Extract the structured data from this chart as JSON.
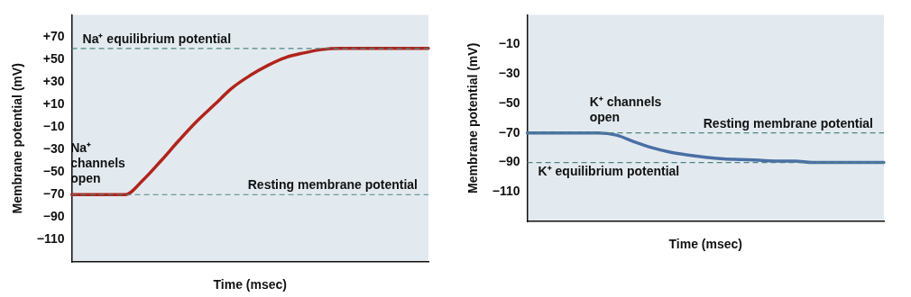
{
  "chart_data": [
    {
      "type": "line",
      "xlabel": "Time (msec)",
      "ylabel": "Membrane potential (mV)",
      "categories": [
        null,
        null,
        null,
        null,
        null,
        null,
        null,
        null,
        null,
        null,
        null,
        null,
        null,
        null,
        null,
        null,
        null,
        null,
        null,
        null,
        null
      ],
      "series": [
        {
          "color": "#b0241c",
          "values": [
            -70,
            -70,
            -70,
            -70,
            -57,
            -40,
            -22,
            -5,
            10,
            25,
            36,
            45,
            52,
            56,
            59,
            60,
            60,
            60,
            60,
            60,
            60
          ]
        }
      ],
      "ylim": [
        -130,
        90
      ],
      "yticks": [
        {
          "value": 70,
          "label": "+70"
        },
        {
          "value": 50,
          "label": "+50"
        },
        {
          "value": 30,
          "label": "+30"
        },
        {
          "value": 10,
          "label": "+10"
        },
        {
          "value": -10,
          "label": "−10"
        },
        {
          "value": -30,
          "label": "−30"
        },
        {
          "value": -50,
          "label": "−50"
        },
        {
          "value": -70,
          "label": "−70"
        },
        {
          "value": -90,
          "label": "−90"
        },
        {
          "value": -110,
          "label": "−110"
        }
      ],
      "tick_labels": "y",
      "grid": false,
      "marker": "none",
      "line_style": "solid",
      "ref_lines": [
        {
          "axis": "y",
          "value": 60,
          "label": "Na⁺ equilibrium potential",
          "color": "#4d8585",
          "line_style": "dashed"
        },
        {
          "axis": "y",
          "value": -70,
          "label": "Resting membrane potential",
          "color": "#4d8585",
          "line_style": "dashed"
        }
      ],
      "annotations": [
        {
          "text": "Na⁺\nchannels\nopen",
          "y": -70
        }
      ]
    },
    {
      "type": "line",
      "xlabel": "Time (msec)",
      "ylabel": "Membrane potential (mV)",
      "categories": [
        null,
        null,
        null,
        null,
        null,
        null,
        null,
        null,
        null,
        null,
        null,
        null,
        null,
        null,
        null,
        null,
        null,
        null,
        null,
        null,
        null
      ],
      "series": [
        {
          "color": "#4a6fa5",
          "values": [
            -70,
            -70,
            -70,
            -70,
            -70,
            -71.5,
            -76,
            -80,
            -83,
            -85,
            -86.5,
            -87.5,
            -88,
            -88.5,
            -89,
            -89,
            -90,
            -90,
            -90,
            -90,
            -90
          ]
        }
      ],
      "ylim": [
        -130,
        10
      ],
      "yticks": [
        {
          "value": -10,
          "label": "−10"
        },
        {
          "value": -30,
          "label": "−30"
        },
        {
          "value": -50,
          "label": "−50"
        },
        {
          "value": -70,
          "label": "−70"
        },
        {
          "value": -90,
          "label": "−90"
        },
        {
          "value": -110,
          "label": "−110"
        }
      ],
      "tick_labels": "y",
      "grid": false,
      "marker": "none",
      "line_style": "solid",
      "ref_lines": [
        {
          "axis": "y",
          "value": -90,
          "label": "K⁺ equilibrium potential",
          "color": "#4d8585",
          "line_style": "dashed"
        },
        {
          "axis": "y",
          "value": -70,
          "label": "Resting membrane potential",
          "color": "#4d8585",
          "line_style": "dashed"
        }
      ],
      "annotations": [
        {
          "text": "K⁺ channels\nopen",
          "y": -70
        }
      ]
    }
  ]
}
